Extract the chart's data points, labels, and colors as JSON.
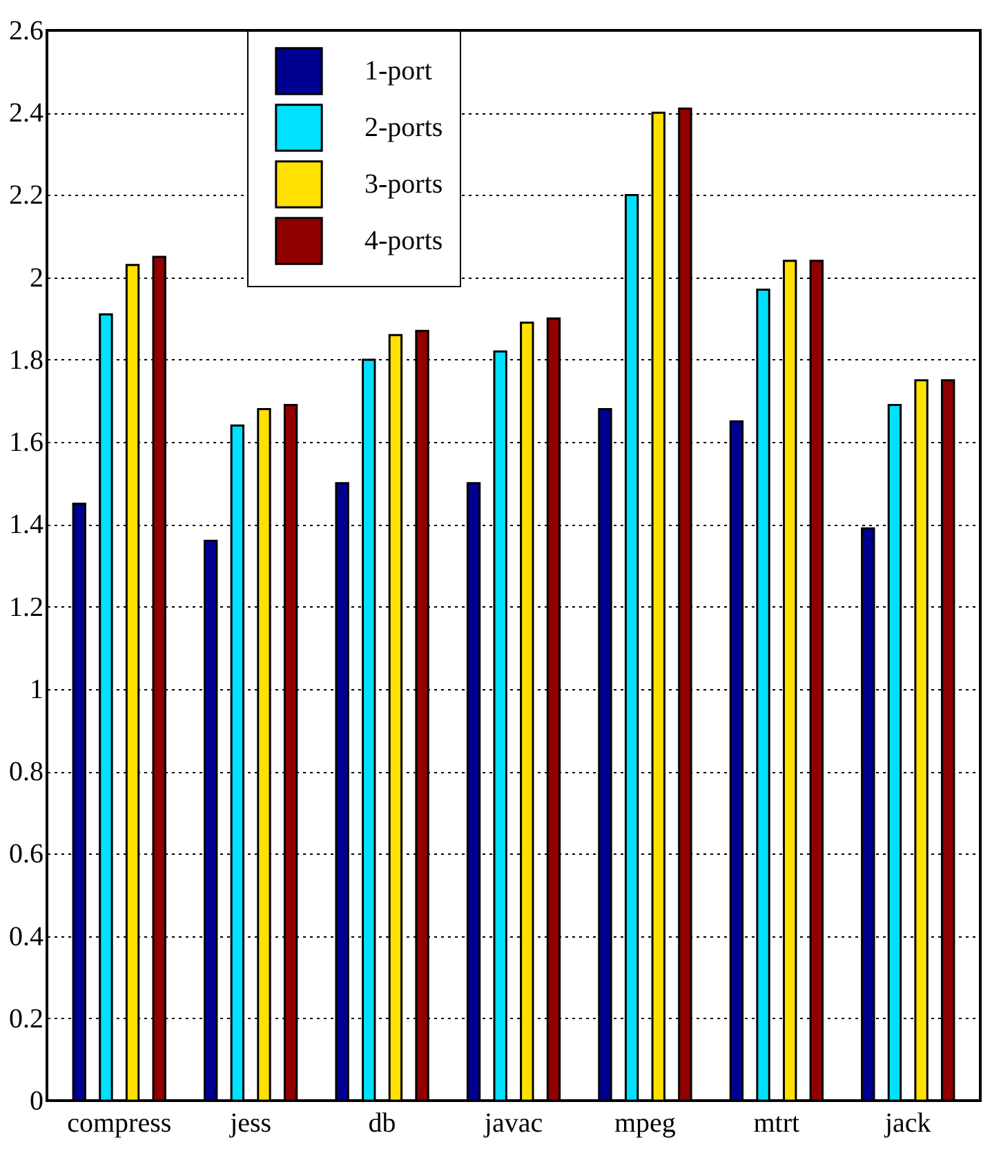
{
  "chart_data": {
    "type": "bar",
    "categories": [
      "compress",
      "jess",
      "db",
      "javac",
      "mpeg",
      "mtrt",
      "jack"
    ],
    "series": [
      {
        "name": "1-port",
        "color": "#000090",
        "values": [
          1.45,
          1.36,
          1.5,
          1.5,
          1.68,
          1.65,
          1.39
        ]
      },
      {
        "name": "2-ports",
        "color": "#00e0ff",
        "values": [
          1.91,
          1.64,
          1.8,
          1.82,
          2.2,
          1.97,
          1.69
        ]
      },
      {
        "name": "3-ports",
        "color": "#ffe000",
        "values": [
          2.03,
          1.68,
          1.86,
          1.89,
          2.4,
          2.04,
          1.75
        ]
      },
      {
        "name": "4-ports",
        "color": "#900000",
        "values": [
          2.05,
          1.69,
          1.87,
          1.9,
          2.41,
          2.04,
          1.75
        ]
      }
    ],
    "ylim": [
      0,
      2.6
    ],
    "yticks": [
      0,
      0.2,
      0.4,
      0.6,
      0.8,
      1,
      1.2,
      1.4,
      1.6,
      1.8,
      2,
      2.2,
      2.4,
      2.6
    ],
    "grid": "y",
    "legend": "top left"
  }
}
